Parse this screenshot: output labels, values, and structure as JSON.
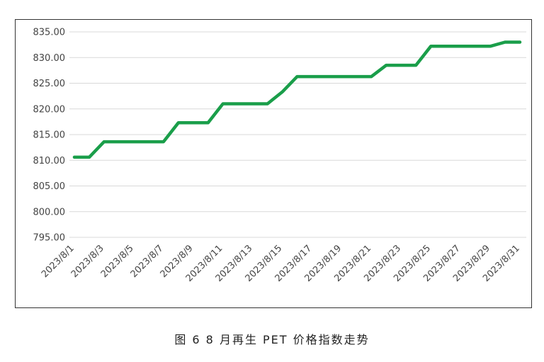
{
  "caption": "图 6  8 月再生 PET 价格指数走势",
  "colors": {
    "line": "#1a9e4a",
    "grid": "#d9d9d9",
    "frame": "#333333"
  },
  "chart_data": {
    "type": "line",
    "title": "",
    "xlabel": "",
    "ylabel": "",
    "ylim": [
      795,
      835
    ],
    "yticks": [
      "835.00",
      "830.00",
      "825.00",
      "820.00",
      "815.00",
      "810.00",
      "805.00",
      "800.00",
      "795.00"
    ],
    "grid": "horizontal",
    "x_tick_labels": [
      "2023/8/1",
      "2023/8/3",
      "2023/8/5",
      "2023/8/7",
      "2023/8/9",
      "2023/8/11",
      "2023/8/13",
      "2023/8/15",
      "2023/8/17",
      "2023/8/19",
      "2023/8/21",
      "2023/8/23",
      "2023/8/25",
      "2023/8/27",
      "2023/8/29",
      "2023/8/31"
    ],
    "series": [
      {
        "x": [
          "2023/8/1",
          "2023/8/2",
          "2023/8/3",
          "2023/8/4",
          "2023/8/5",
          "2023/8/6",
          "2023/8/7",
          "2023/8/8",
          "2023/8/9",
          "2023/8/10",
          "2023/8/11",
          "2023/8/12",
          "2023/8/13",
          "2023/8/14",
          "2023/8/15",
          "2023/8/16",
          "2023/8/17",
          "2023/8/18",
          "2023/8/19",
          "2023/8/20",
          "2023/8/21",
          "2023/8/22",
          "2023/8/23",
          "2023/8/24",
          "2023/8/25",
          "2023/8/26",
          "2023/8/27",
          "2023/8/28",
          "2023/8/29",
          "2023/8/30",
          "2023/8/31"
        ],
        "values": [
          810.6,
          810.6,
          813.6,
          813.6,
          813.6,
          813.6,
          813.6,
          817.3,
          817.3,
          817.3,
          821.0,
          821.0,
          821.0,
          821.0,
          823.3,
          826.3,
          826.3,
          826.3,
          826.3,
          826.3,
          826.3,
          828.5,
          828.5,
          828.5,
          832.2,
          832.2,
          832.2,
          832.2,
          832.2,
          833.0,
          833.0
        ]
      }
    ]
  }
}
